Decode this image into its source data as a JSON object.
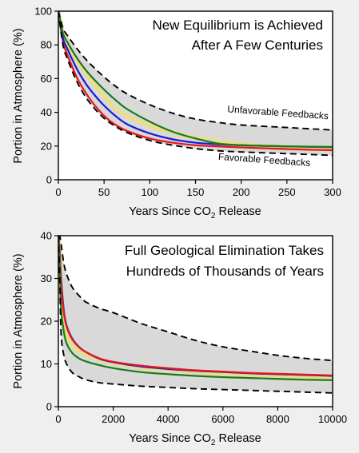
{
  "chart_data": [
    {
      "type": "line",
      "title_lines": [
        "New Equilibrium is Achieved",
        "After A Few Centuries"
      ],
      "xlabel_prefix": "Years Since CO",
      "xlabel_sub": "2",
      "xlabel_suffix": " Release",
      "ylabel": "Portion in Atmosphere (%)",
      "xlim": [
        0,
        300
      ],
      "ylim": [
        0,
        100
      ],
      "xticks": [
        0,
        50,
        100,
        150,
        200,
        250,
        300
      ],
      "yticks": [
        0,
        20,
        40,
        60,
        80,
        100
      ],
      "x": [
        0,
        5,
        10,
        20,
        30,
        40,
        50,
        60,
        75,
        100,
        125,
        150,
        175,
        200,
        250,
        300
      ],
      "band": {
        "upper": [
          100,
          90,
          85.5,
          78,
          71.5,
          66,
          61,
          56.5,
          51,
          44.5,
          39.5,
          36,
          34,
          32.5,
          31,
          29.5
        ],
        "lower": [
          100,
          80,
          71.5,
          58.5,
          49,
          42,
          36.5,
          32.5,
          28,
          23.3,
          20.5,
          18.5,
          17.2,
          16.5,
          15.5,
          14.5
        ]
      },
      "series": [
        {
          "color": "#e8de8a",
          "values": [
            100,
            87,
            80,
            71,
            63,
            56,
            49.5,
            43.5,
            38,
            32,
            28,
            25,
            22.5,
            21,
            19.5,
            18.5
          ]
        },
        {
          "color": "#e8161c",
          "values": [
            100,
            82,
            74,
            61,
            51.5,
            44,
            38,
            33.5,
            29,
            24.5,
            22,
            20.5,
            19.8,
            19.2,
            18.2,
            17.5
          ]
        },
        {
          "color": "#1a1adb",
          "values": [
            100,
            84,
            77.5,
            66,
            57,
            50,
            44,
            39,
            33,
            27.5,
            24,
            22,
            21,
            20.5,
            19.8,
            19.3
          ]
        },
        {
          "color": "#1a7a1a",
          "values": [
            100,
            87,
            81.5,
            72.5,
            65,
            59,
            53.5,
            48.5,
            42,
            34.5,
            28.5,
            24.5,
            21.5,
            20.5,
            19.8,
            19.5
          ]
        }
      ],
      "annotations": [
        {
          "text": "Unfavorable Feedbacks",
          "x": 240,
          "y": 38
        },
        {
          "text": "Favorable Feedbacks",
          "x": 225,
          "y": 10
        }
      ]
    },
    {
      "type": "line",
      "title_lines": [
        "Full Geological Elimination Takes",
        "Hundreds of Thousands of Years"
      ],
      "xlabel_prefix": "Years Since CO",
      "xlabel_sub": "2",
      "xlabel_suffix": " Release",
      "ylabel": "Portion in Atmosphere (%)",
      "xlim": [
        0,
        10000
      ],
      "ylim": [
        0,
        40
      ],
      "xticks": [
        0,
        2000,
        4000,
        6000,
        8000,
        10000
      ],
      "yticks": [
        0,
        10,
        20,
        30,
        40
      ],
      "x": [
        0,
        50,
        100,
        200,
        300,
        500,
        750,
        1000,
        1500,
        2000,
        3000,
        4000,
        5000,
        6000,
        7000,
        8000,
        9000,
        10000
      ],
      "band": {
        "upper": [
          40,
          40,
          38,
          33.5,
          31,
          28,
          26,
          24.5,
          23,
          22,
          19.5,
          17.5,
          15.5,
          14,
          13,
          12,
          11.3,
          10.8
        ],
        "lower": [
          40,
          30,
          17,
          12,
          10,
          8,
          7,
          6.3,
          5.6,
          5.3,
          4.8,
          4.5,
          4.2,
          4,
          3.8,
          3.6,
          3.4,
          3.2
        ]
      },
      "series": [
        {
          "color": "#e8de8a",
          "values": [
            40,
            34,
            26,
            19.5,
            16.8,
            14.5,
            13,
            12.2,
            11,
            10.2,
            9.2,
            8.6,
            8.1,
            7.7,
            7.4,
            7.2,
            7,
            6.8
          ]
        },
        {
          "color": "#1a1adb",
          "values": [
            40,
            36,
            30,
            22.5,
            19,
            16,
            14,
            12.8,
            11.2,
            10.4,
            9.4,
            8.8,
            8.4,
            8.1,
            7.8,
            7.6,
            7.4,
            7.2
          ]
        },
        {
          "color": "#e8161c",
          "values": [
            40,
            35.5,
            29,
            22,
            18.7,
            15.8,
            13.9,
            12.8,
            11.3,
            10.5,
            9.6,
            9,
            8.5,
            8.2,
            7.9,
            7.7,
            7.5,
            7.3
          ]
        },
        {
          "color": "#1a7a1a",
          "values": [
            40,
            33,
            23,
            17.5,
            14.8,
            12.6,
            11.3,
            10.6,
            9.7,
            9,
            8.1,
            7.6,
            7.2,
            6.9,
            6.7,
            6.5,
            6.3,
            6.2
          ]
        }
      ],
      "annotations": []
    }
  ]
}
